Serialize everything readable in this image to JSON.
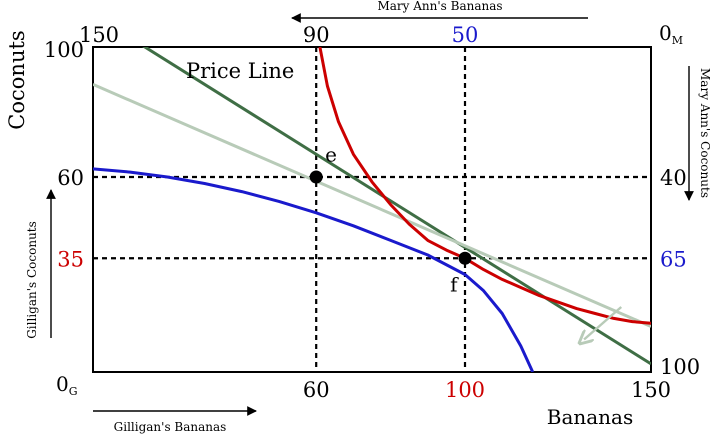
{
  "chart_data": {
    "type": "line",
    "title": "",
    "xlabel": "Bananas",
    "ylabel": "Coconuts",
    "xlim": [
      0,
      150
    ],
    "ylim": [
      0,
      100
    ],
    "x_ticks_bottom": [
      "60",
      "100",
      "150"
    ],
    "x_tick_values_bottom": [
      60,
      100,
      150
    ],
    "x_tick_colors_bottom": [
      "#000000",
      "#cc0000",
      "#000000"
    ],
    "x_ticks_top": [
      "150",
      "90",
      "50"
    ],
    "x_tick_values_top": [
      0,
      60,
      100
    ],
    "x_tick_colors_top": [
      "#000000",
      "#000000",
      "#1a1acc"
    ],
    "y_ticks_left": [
      "100",
      "60",
      "35"
    ],
    "y_tick_values_left": [
      100,
      60,
      35
    ],
    "y_tick_colors_left": [
      "#000000",
      "#000000",
      "#cc0000"
    ],
    "y_ticks_right": [
      "40",
      "65",
      "100"
    ],
    "y_tick_values_right": [
      60,
      35,
      0
    ],
    "y_tick_colors_right": [
      "#000000",
      "#1a1acc",
      "#000000"
    ],
    "origin_gilligan": {
      "main": "0",
      "sub": "G"
    },
    "origin_maryann": {
      "main": "0",
      "sub": "M"
    },
    "top_axis_label": "Mary Ann's Bananas",
    "right_axis_label": "Mary Ann's Coconuts",
    "gilligan_coconuts_label": "Gilligan's Coconuts",
    "gilligan_bananas_label": "Gilligan's Bananas",
    "annotations": [
      {
        "text": "Price Line",
        "x": 25,
        "y": 93
      },
      {
        "text": "e",
        "x": 64,
        "y": 66
      },
      {
        "text": "f",
        "x": 97,
        "y": 26
      }
    ],
    "points": [
      {
        "name": "e",
        "x": 60,
        "y": 60
      },
      {
        "name": "f",
        "x": 100,
        "y": 35
      }
    ],
    "guides": [
      {
        "type": "vertical",
        "x": 60
      },
      {
        "type": "vertical",
        "x": 100
      },
      {
        "type": "horizontal",
        "y": 60
      },
      {
        "type": "horizontal",
        "y": 35
      }
    ],
    "series": [
      {
        "name": "Price Line",
        "color": "#3f6e45",
        "x": [
          0,
          150
        ],
        "y": [
          110,
          2.5
        ]
      },
      {
        "color": "#b8cbb8",
        "x": [
          0,
          150
        ],
        "y": [
          88.5,
          14
        ]
      },
      {
        "color": "#1a1acc",
        "x": [
          0,
          10,
          20,
          30,
          40,
          50,
          60,
          70,
          80,
          90,
          100,
          105,
          110,
          115,
          118.2
        ],
        "y": [
          62.5,
          61.5,
          60,
          58,
          55.5,
          52.5,
          49,
          45,
          40.5,
          36,
          30,
          25,
          18,
          8,
          0
        ]
      },
      {
        "color": "#cc0000",
        "x": [
          61,
          63,
          66,
          70,
          75,
          80,
          85,
          90,
          95,
          100,
          105,
          110,
          115,
          120,
          125,
          130,
          135,
          140,
          145,
          150
        ],
        "y": [
          100,
          88,
          77,
          67,
          58.5,
          51.5,
          45.5,
          40.5,
          37.5,
          35,
          31.5,
          28.5,
          26,
          23.5,
          21.5,
          19.5,
          18,
          16.5,
          15.5,
          15
        ]
      }
    ],
    "arrow_color": "#b8cbb8",
    "grid": false,
    "legend": "none"
  }
}
